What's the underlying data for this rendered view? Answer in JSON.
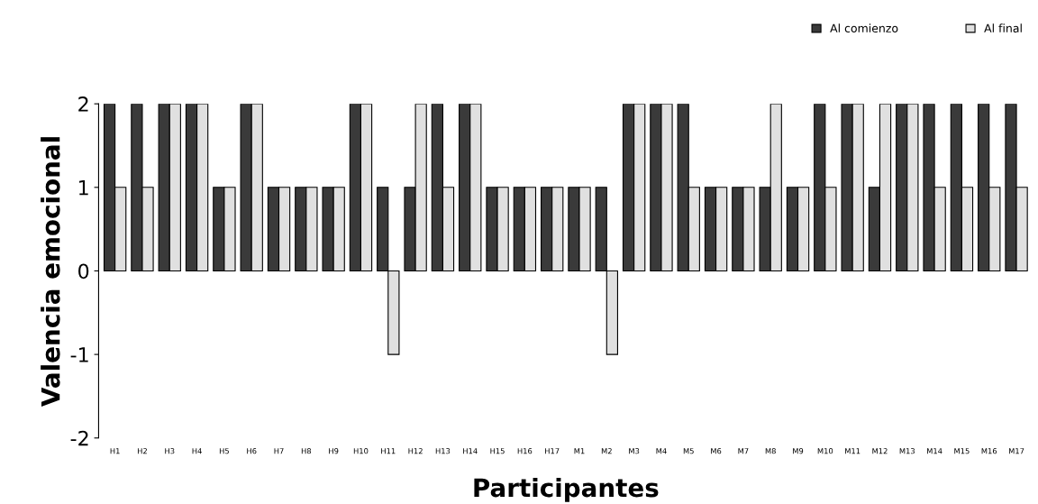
{
  "chart_data": {
    "type": "bar",
    "xlabel": "Participantes",
    "ylabel": "Valencia emocional",
    "categories": [
      "H1",
      "H2",
      "H3",
      "H4",
      "H5",
      "H6",
      "H7",
      "H8",
      "H9",
      "H10",
      "H11",
      "H12",
      "H13",
      "H14",
      "H15",
      "H16",
      "H17",
      "M1",
      "M2",
      "M3",
      "M4",
      "M5",
      "M6",
      "M7",
      "M8",
      "M9",
      "M10",
      "M11",
      "M12",
      "M13",
      "M14",
      "M15",
      "M16",
      "M17"
    ],
    "series": [
      {
        "name": "Al comienzo",
        "color": "#3a3a3a",
        "values": [
          2,
          2,
          2,
          2,
          1,
          2,
          1,
          1,
          1,
          2,
          1,
          1,
          2,
          2,
          1,
          1,
          1,
          1,
          1,
          2,
          2,
          2,
          1,
          1,
          1,
          1,
          2,
          2,
          1,
          2,
          2,
          2,
          2,
          2
        ]
      },
      {
        "name": "Al final",
        "color": "#e0e0e0",
        "values": [
          1,
          1,
          2,
          2,
          1,
          2,
          1,
          1,
          1,
          2,
          -1,
          2,
          1,
          2,
          1,
          1,
          1,
          1,
          -1,
          2,
          2,
          1,
          1,
          1,
          2,
          1,
          1,
          2,
          2,
          2,
          1,
          1,
          1,
          1
        ]
      }
    ],
    "ylim": [
      -2,
      2
    ],
    "yticks": [
      -2,
      -1,
      0,
      1,
      2
    ],
    "grid": false,
    "legend": "top right"
  }
}
